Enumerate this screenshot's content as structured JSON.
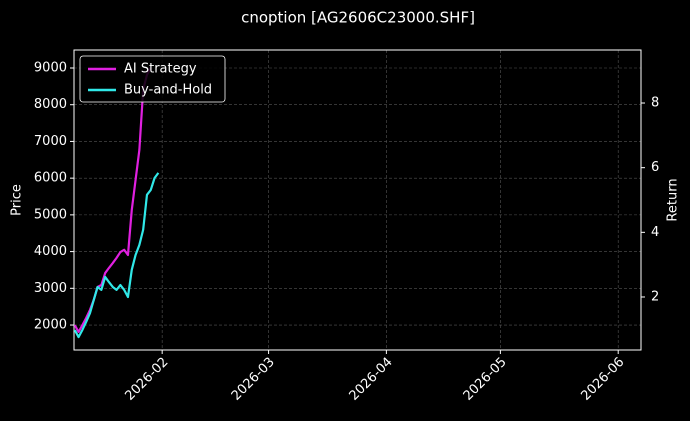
{
  "chart_data": {
    "type": "line",
    "title": "cnoption [AG2606C23000.SHF]",
    "ylabel": "Price",
    "y2label": "Return",
    "x": [
      8,
      9,
      10,
      11,
      12,
      13,
      14,
      15,
      16,
      17,
      18,
      19,
      20,
      21,
      22,
      23,
      24,
      25,
      26,
      27,
      28,
      29,
      30
    ],
    "series": [
      {
        "name": "AI Strategy",
        "color": "#e020e0",
        "axis": "y2",
        "values": [
          1.13,
          0.92,
          1.13,
          1.35,
          1.6,
          1.91,
          2.31,
          2.37,
          2.74,
          2.9,
          3.05,
          3.21,
          3.39,
          3.46,
          3.3,
          4.69,
          5.62,
          6.55,
          8.41,
          8.87,
          9.09,
          null,
          null
        ]
      },
      {
        "name": "Buy-and-Hold",
        "color": "#30e8e8",
        "axis": "y2",
        "values": [
          0.98,
          0.76,
          0.98,
          1.23,
          1.5,
          1.91,
          2.31,
          2.22,
          2.62,
          2.46,
          2.31,
          2.22,
          2.37,
          2.22,
          2.0,
          2.84,
          3.3,
          3.61,
          4.08,
          5.16,
          5.31,
          5.68,
          5.84
        ]
      }
    ],
    "xlim": [
      7.8,
      157
    ],
    "xticks": [
      {
        "value": 31,
        "label": "2026-02"
      },
      {
        "value": 59,
        "label": "2026-03"
      },
      {
        "value": 90,
        "label": "2026-04"
      },
      {
        "value": 120,
        "label": "2026-05"
      },
      {
        "value": 151,
        "label": "2026-06"
      }
    ],
    "ylim": [
      1320,
      9490
    ],
    "yticks": [
      2000,
      3000,
      4000,
      5000,
      6000,
      7000,
      8000,
      9000
    ],
    "y2lim": [
      0.36,
      9.64
    ],
    "y2ticks": [
      2,
      4,
      6,
      8
    ],
    "grid": true,
    "legend": "upper left"
  }
}
